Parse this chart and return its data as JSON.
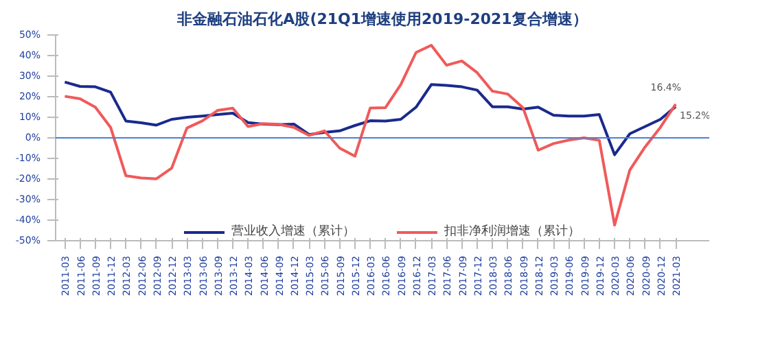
{
  "chart_data": {
    "type": "line",
    "title": "非金融石油石化A股(21Q1增速使用2019-2021复合增速）",
    "categories": [
      "2011-03",
      "2011-06",
      "2011-09",
      "2011-12",
      "2012-03",
      "2012-06",
      "2012-09",
      "2012-12",
      "2013-03",
      "2013-06",
      "2013-09",
      "2013-12",
      "2014-03",
      "2014-06",
      "2014-09",
      "2014-12",
      "2015-03",
      "2015-06",
      "2015-09",
      "2015-12",
      "2016-03",
      "2016-06",
      "2016-09",
      "2016-12",
      "2017-03",
      "2017-06",
      "2017-09",
      "2017-12",
      "2018-03",
      "2018-06",
      "2018-09",
      "2018-12",
      "2019-03",
      "2019-06",
      "2019-09",
      "2019-12",
      "2020-03",
      "2020-06",
      "2020-09",
      "2020-12",
      "2021-03"
    ],
    "series": [
      {
        "name": "营业收入增速（累计）",
        "color": "#1a2a8c",
        "values": [
          27.1,
          25,
          24.8,
          22.2,
          8.2,
          7.3,
          6.2,
          9,
          10,
          10.6,
          11.3,
          12,
          7.4,
          6.7,
          6.4,
          6.7,
          1.6,
          2.7,
          3.4,
          6,
          8.3,
          8.2,
          9,
          14.9,
          25.9,
          25.5,
          24.8,
          23.2,
          15.1,
          15.1,
          14,
          14.9,
          11,
          10.6,
          10.6,
          11.3,
          -8.2,
          2,
          5.5,
          9,
          15.2
        ],
        "value_labels": [
          null,
          null,
          null,
          null,
          null,
          null,
          null,
          null,
          null,
          null,
          null,
          null,
          null,
          null,
          null,
          null,
          null,
          null,
          null,
          null,
          null,
          null,
          null,
          null,
          null,
          null,
          null,
          null,
          null,
          null,
          null,
          null,
          null,
          null,
          null,
          null,
          null,
          null,
          null,
          null,
          "15.2%"
        ]
      },
      {
        "name": "扣非净利润增速（累计）",
        "color": "#f05a5a",
        "values": [
          20.2,
          19,
          14.9,
          5.1,
          -18.4,
          -19.5,
          -19.9,
          -14.7,
          4.8,
          8.2,
          13.3,
          14.4,
          5.5,
          6.9,
          6.6,
          5.1,
          1.2,
          3.4,
          -5,
          -8.9,
          14.5,
          14.7,
          25.9,
          41.5,
          45,
          35.3,
          37.4,
          31.7,
          22.7,
          21.3,
          14.7,
          -6,
          -2.8,
          -1.1,
          0,
          -1.2,
          -42.4,
          -15.6,
          -4.4,
          5.1,
          16.4
        ],
        "value_labels": [
          null,
          null,
          null,
          null,
          null,
          null,
          null,
          null,
          null,
          null,
          null,
          null,
          null,
          null,
          null,
          null,
          null,
          null,
          null,
          null,
          null,
          null,
          null,
          null,
          null,
          null,
          null,
          null,
          null,
          null,
          null,
          null,
          null,
          null,
          null,
          null,
          null,
          null,
          null,
          null,
          "16.4%"
        ]
      }
    ],
    "ylim": [
      -50,
      50
    ],
    "yticks": [
      {
        "value": -50,
        "label": "-50%"
      },
      {
        "value": -40,
        "label": "-40%"
      },
      {
        "value": -30,
        "label": "-30%"
      },
      {
        "value": -20,
        "label": "-20%"
      },
      {
        "value": -10,
        "label": "-10%"
      },
      {
        "value": 0,
        "label": "0%"
      },
      {
        "value": 10,
        "label": "10%"
      },
      {
        "value": 20,
        "label": "20%"
      },
      {
        "value": 30,
        "label": "30%"
      },
      {
        "value": 40,
        "label": "40%"
      },
      {
        "value": 50,
        "label": "50%"
      }
    ],
    "ref_lines": [
      {
        "axis": "y",
        "value": 0,
        "color": "#4a7fd6"
      }
    ],
    "grid": false,
    "legend": "bottom",
    "marker": "none",
    "line_style": "solid"
  }
}
